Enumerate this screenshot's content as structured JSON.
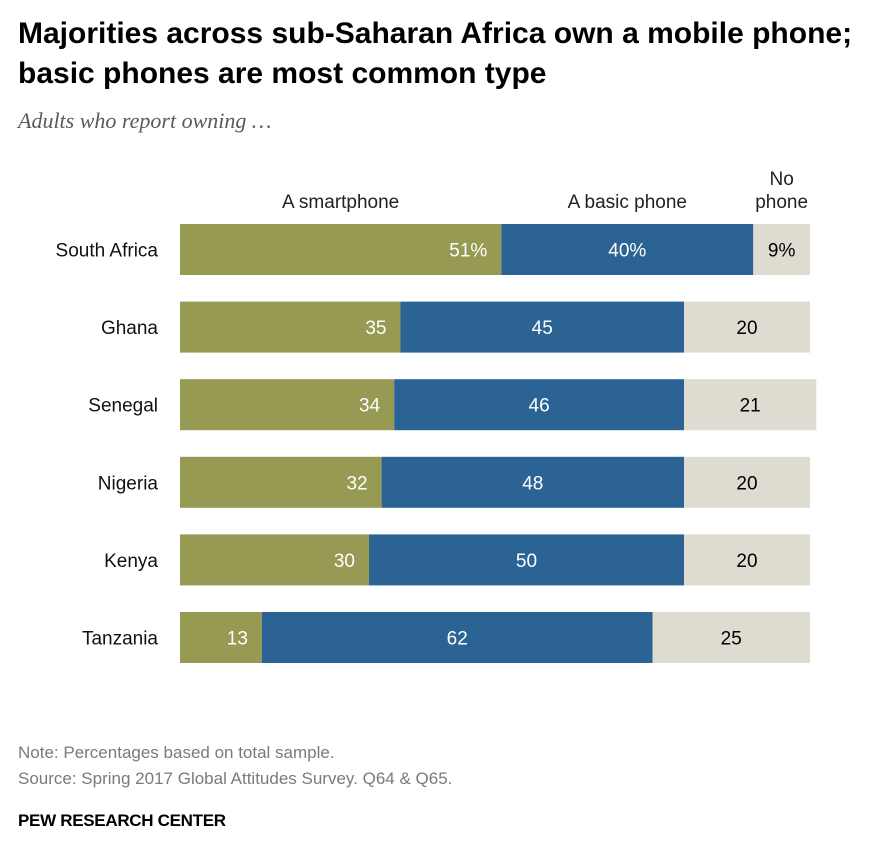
{
  "title": "Majorities across sub-Saharan Africa own a mobile phone; basic phones are most common type",
  "subtitle": "Adults who report owning …",
  "note": "Note: Percentages based on total sample.",
  "source": "Source: Spring 2017 Global Attitudes Survey. Q64 & Q65.",
  "credit": "PEW RESEARCH CENTER",
  "chart_data": {
    "type": "bar",
    "orientation": "horizontal",
    "stacked": true,
    "categories": [
      "South Africa",
      "Ghana",
      "Senegal",
      "Nigeria",
      "Kenya",
      "Tanzania"
    ],
    "series": [
      {
        "name": "A smartphone",
        "color": "#969a52",
        "label_color": "#ffffff",
        "values": [
          51,
          35,
          34,
          32,
          30,
          13
        ],
        "labels": [
          "51%",
          "35",
          "34",
          "32",
          "30",
          "13"
        ]
      },
      {
        "name": "A basic phone",
        "color": "#2b6494",
        "label_color": "#ffffff",
        "values": [
          40,
          45,
          46,
          48,
          50,
          62
        ],
        "labels": [
          "40%",
          "45",
          "46",
          "48",
          "50",
          "62"
        ]
      },
      {
        "name": "No phone",
        "color": "#dedbd1",
        "label_color": "#000000",
        "values": [
          9,
          20,
          21,
          20,
          20,
          25
        ],
        "labels": [
          "9%",
          "20",
          "21",
          "20",
          "20",
          "25"
        ]
      }
    ],
    "legend_labels": [
      [
        "A smartphone"
      ],
      [
        "A basic phone"
      ],
      [
        "No",
        "phone"
      ]
    ],
    "xlim": [
      0,
      100
    ],
    "units": "%"
  }
}
